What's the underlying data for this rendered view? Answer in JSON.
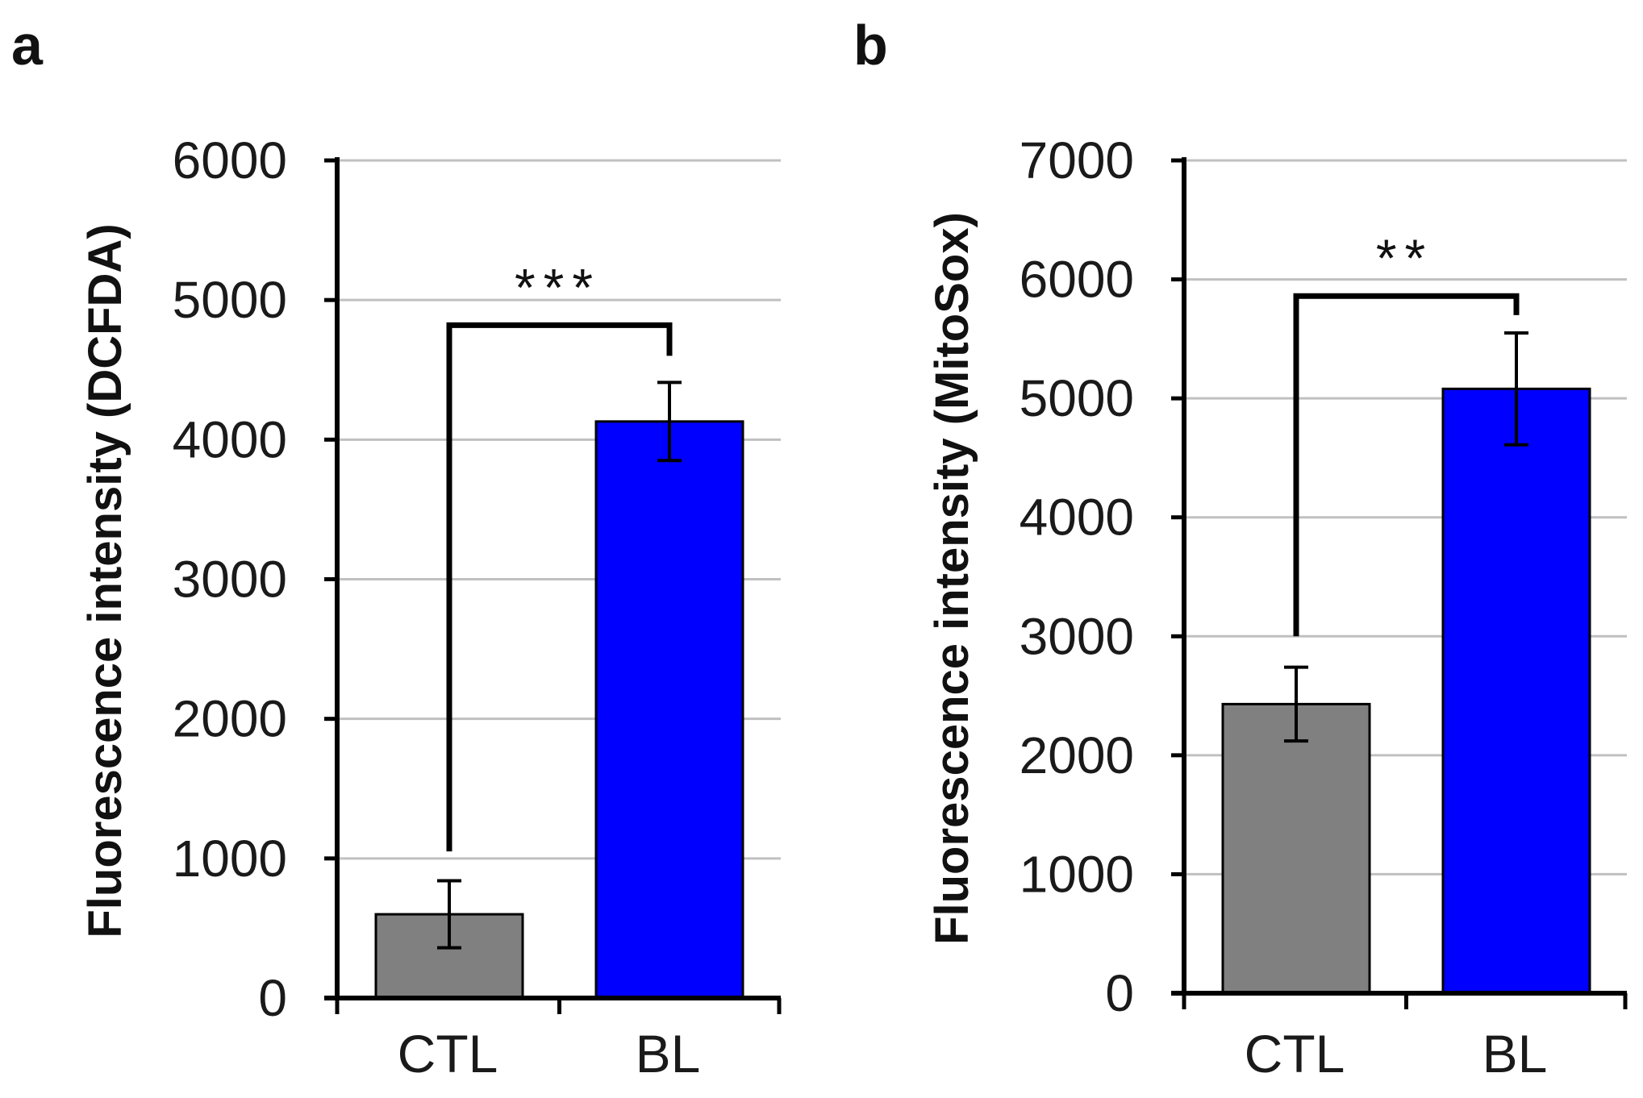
{
  "chart_data": [
    {
      "type": "bar",
      "panel_label": "a",
      "categories": [
        "CTL",
        "BL"
      ],
      "values": [
        600,
        4130
      ],
      "errors": [
        240,
        280
      ],
      "colors": [
        "#808080",
        "#0000ff"
      ],
      "ylabel": "Fluorescence intensity (DCFDA)",
      "xlabel": "",
      "ylim": [
        0,
        6000
      ],
      "yticks": [
        "0",
        "1000",
        "2000",
        "3000",
        "4000",
        "5000",
        "6000"
      ],
      "grid": true,
      "significance": {
        "label": "***",
        "between": [
          "CTL",
          "BL"
        ],
        "bracket_level": 4820,
        "left_start": 1050,
        "right_end": 4600
      }
    },
    {
      "type": "bar",
      "panel_label": "b",
      "categories": [
        "CTL",
        "BL"
      ],
      "values": [
        2430,
        5080
      ],
      "errors": [
        310,
        470
      ],
      "colors": [
        "#808080",
        "#0000ff"
      ],
      "ylabel": "Fluorescence intensity (MitoSox)",
      "xlabel": "",
      "ylim": [
        0,
        7000
      ],
      "yticks": [
        "0",
        "1000",
        "2000",
        "3000",
        "4000",
        "5000",
        "6000",
        "7000"
      ],
      "grid": true,
      "significance": {
        "label": "**",
        "between": [
          "CTL",
          "BL"
        ],
        "bracket_level": 5860,
        "left_start": 3000,
        "right_end": 5700
      }
    }
  ]
}
